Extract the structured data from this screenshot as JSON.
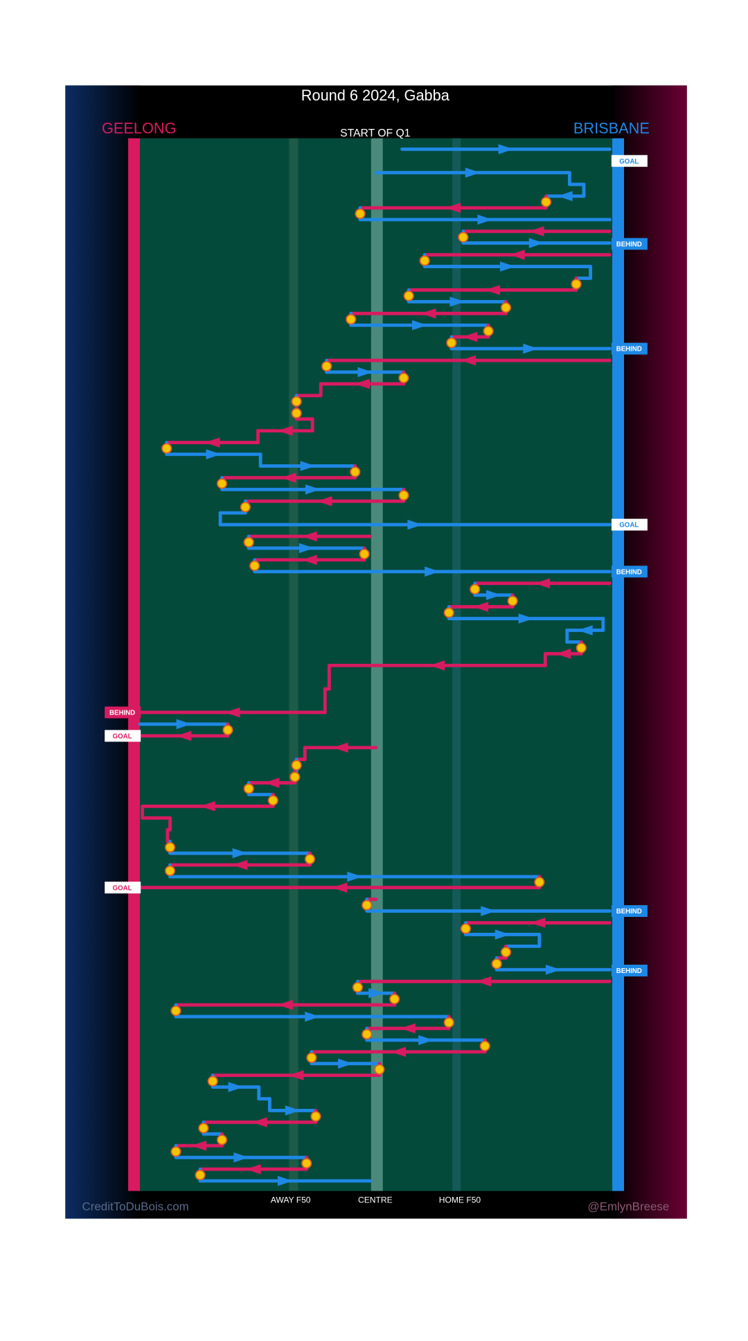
{
  "title": "Round 6 2024, Gabba",
  "teams": {
    "home_left": "GEELONG",
    "away_right": "BRISBANE"
  },
  "period": "START OF Q1",
  "zones": [
    "AWAY F50",
    "CENTRE",
    "HOME F50"
  ],
  "credits": {
    "left": "CreditToDuBois.com",
    "right": "@EmlynBreese"
  },
  "scores": {
    "right": [
      "GOAL",
      "BEHIND",
      "BEHIND",
      "GOAL",
      "BEHIND",
      "BEHIND",
      "BEHIND"
    ],
    "left": [
      "BEHIND",
      "GOAL",
      "GOAL"
    ]
  }
}
